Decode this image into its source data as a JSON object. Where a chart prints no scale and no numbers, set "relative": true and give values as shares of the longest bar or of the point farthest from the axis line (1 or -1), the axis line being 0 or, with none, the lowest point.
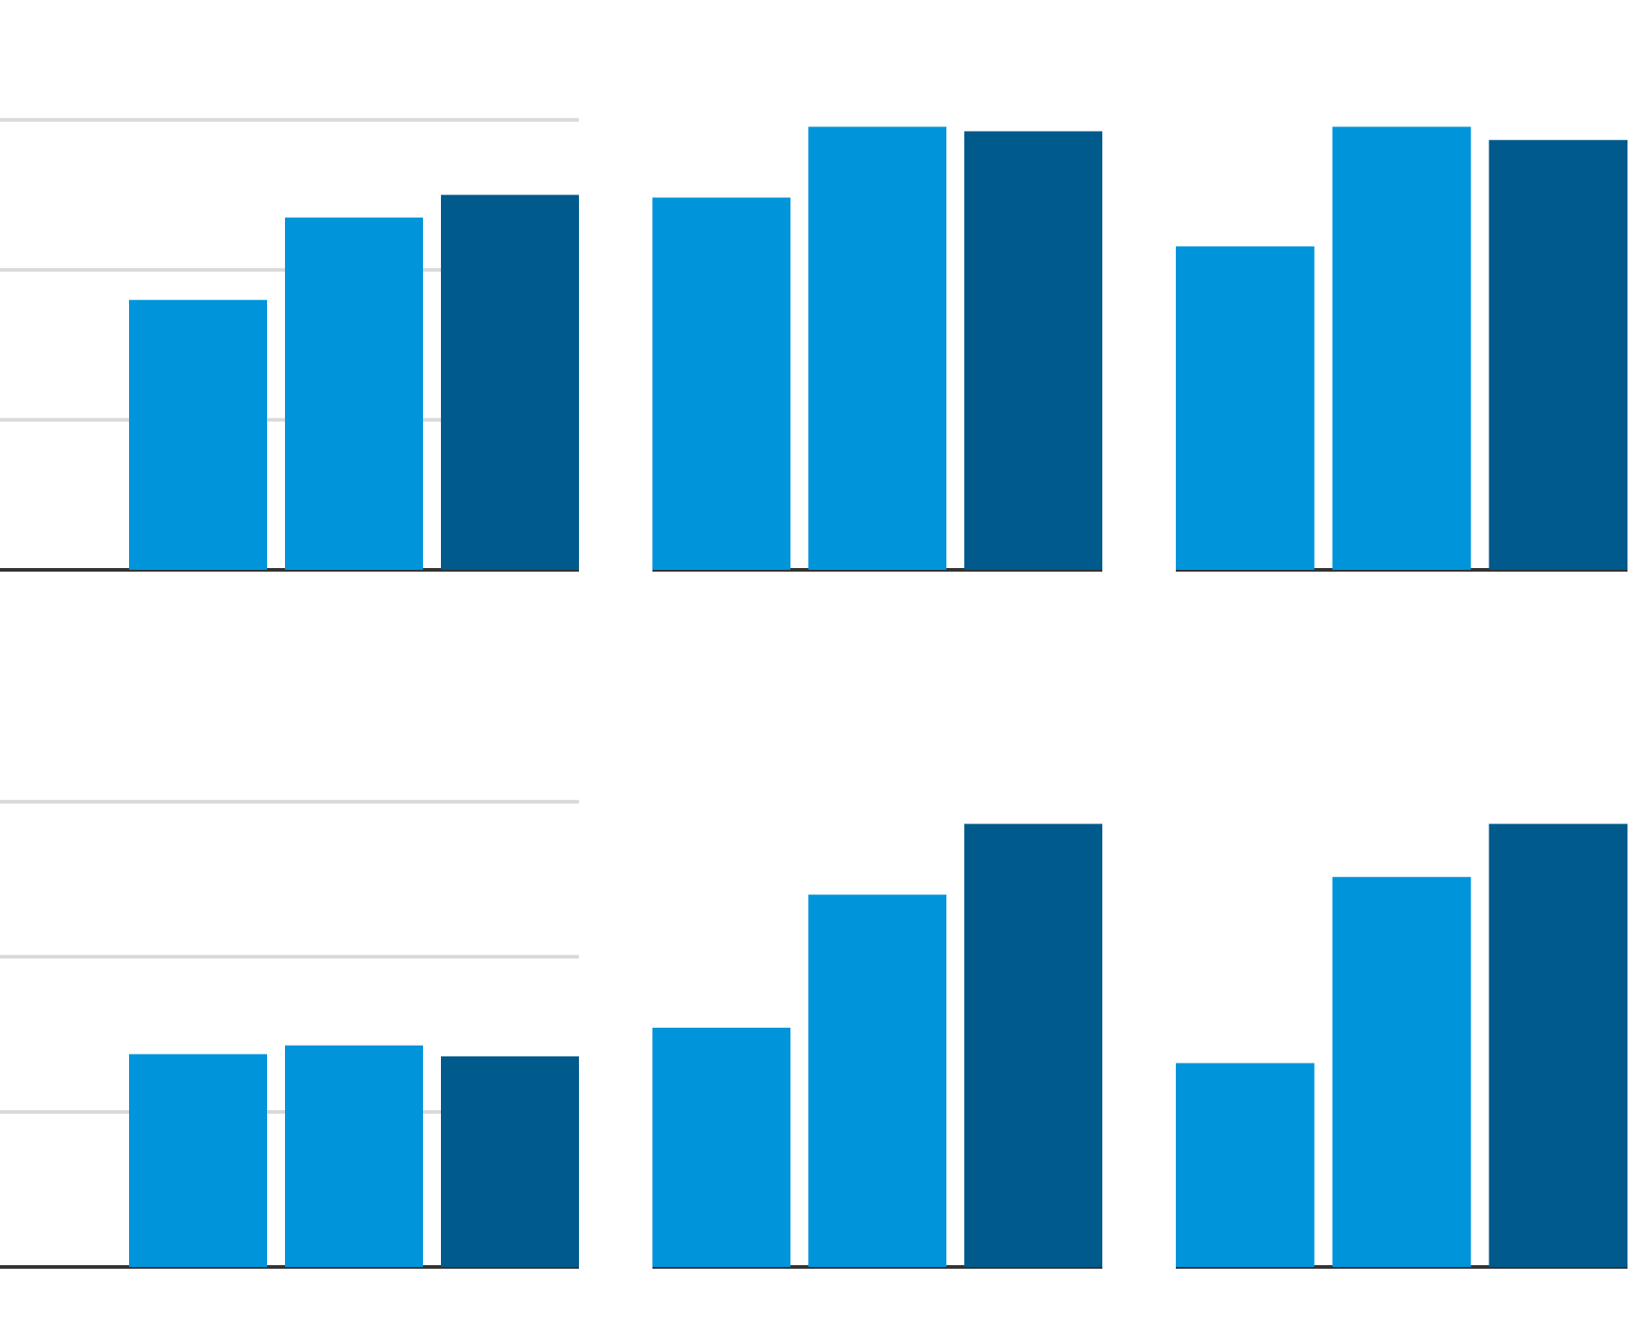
{
  "chart_data": [
    {
      "type": "bar",
      "relative": true,
      "categories": [
        null,
        null,
        null
      ],
      "values": [
        0.72,
        0.94,
        1
      ],
      "colors": [
        "#0095db",
        "#0095db",
        "#005a8c"
      ],
      "ref_lines": [
        {
          "axis": "y",
          "value": 0.4,
          "color": "#d9d9d9"
        },
        {
          "axis": "y",
          "value": 0.8,
          "color": "#d9d9d9"
        },
        {
          "axis": "y",
          "value": 1.2,
          "color": "#d9d9d9"
        }
      ]
    },
    {
      "type": "bar",
      "relative": true,
      "categories": [
        null,
        null,
        null
      ],
      "values": [
        0.84,
        1,
        0.99
      ],
      "colors": [
        "#0095db",
        "#0095db",
        "#005a8c"
      ]
    },
    {
      "type": "bar",
      "relative": true,
      "categories": [
        null,
        null,
        null
      ],
      "values": [
        0.73,
        1,
        0.97
      ],
      "colors": [
        "#0095db",
        "#0095db",
        "#005a8c"
      ]
    },
    {
      "type": "bar",
      "relative": true,
      "categories": [
        null,
        null,
        null
      ],
      "values": [
        0.96,
        1,
        0.95
      ],
      "colors": [
        "#0095db",
        "#0095db",
        "#005a8c"
      ],
      "ref_lines": [
        {
          "axis": "y",
          "value": 0.7,
          "color": "#d9d9d9"
        },
        {
          "axis": "y",
          "value": 1.4,
          "color": "#d9d9d9"
        },
        {
          "axis": "y",
          "value": 2.1,
          "color": "#d9d9d9"
        }
      ]
    },
    {
      "type": "bar",
      "relative": true,
      "categories": [
        null,
        null,
        null
      ],
      "values": [
        0.54,
        0.84,
        1
      ],
      "colors": [
        "#0095db",
        "#0095db",
        "#005a8c"
      ]
    },
    {
      "type": "bar",
      "relative": true,
      "categories": [
        null,
        null,
        null
      ],
      "values": [
        0.46,
        0.88,
        1
      ],
      "colors": [
        "#0095db",
        "#0095db",
        "#005a8c"
      ]
    }
  ]
}
